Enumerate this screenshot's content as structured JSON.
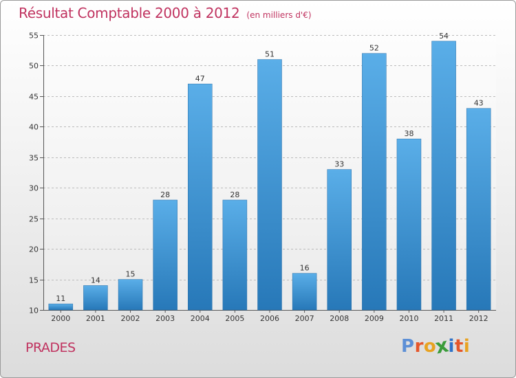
{
  "title": "Résultat Comptable 2000 à 2012",
  "subtitle": "(en milliers d'€)",
  "location": "PRADES",
  "brand": "Proxiti",
  "brand_colors": [
    "#5c8fd6",
    "#e5562a",
    "#e8a221",
    "#3a9c3a",
    "#2f72c8",
    "#e5562a",
    "#e8a221"
  ],
  "colors": {
    "title": "#c0325f",
    "bar_light": "#5aaee8",
    "bar_dark": "#2778b8"
  },
  "chart_data": {
    "type": "bar",
    "title": "Résultat Comptable 2000 à 2012",
    "subtitle": "(en milliers d'€)",
    "categories": [
      "2000",
      "2001",
      "2002",
      "2003",
      "2004",
      "2005",
      "2006",
      "2007",
      "2008",
      "2009",
      "2010",
      "2011",
      "2012"
    ],
    "values": [
      11,
      14,
      15,
      28,
      47,
      28,
      51,
      16,
      33,
      52,
      38,
      54,
      43
    ],
    "ylim": [
      10,
      55
    ],
    "yticks": [
      10,
      15,
      20,
      25,
      30,
      35,
      40,
      45,
      50,
      55
    ],
    "xlabel": "",
    "ylabel": "",
    "grid": "horizontal dashed"
  }
}
